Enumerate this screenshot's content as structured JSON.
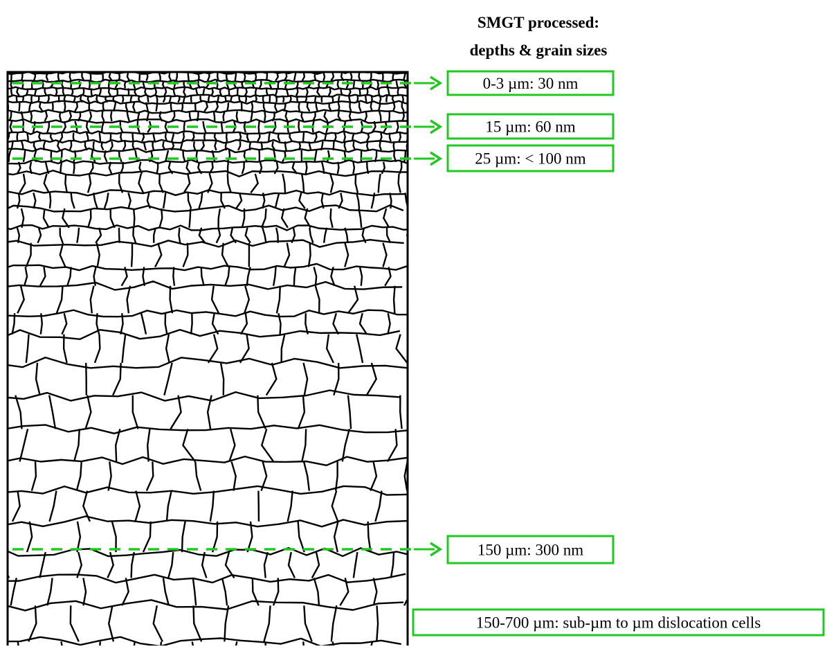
{
  "title_lines": [
    "SMGT processed:",
    "depths & grain sizes"
  ],
  "labels": [
    "0-3 µm: 30 nm",
    "15 µm: 60 nm",
    "25 µm: < 100 nm",
    "150 µm: 300 nm",
    "150-700 µm: sub-µm to µm dislocation cells"
  ]
}
